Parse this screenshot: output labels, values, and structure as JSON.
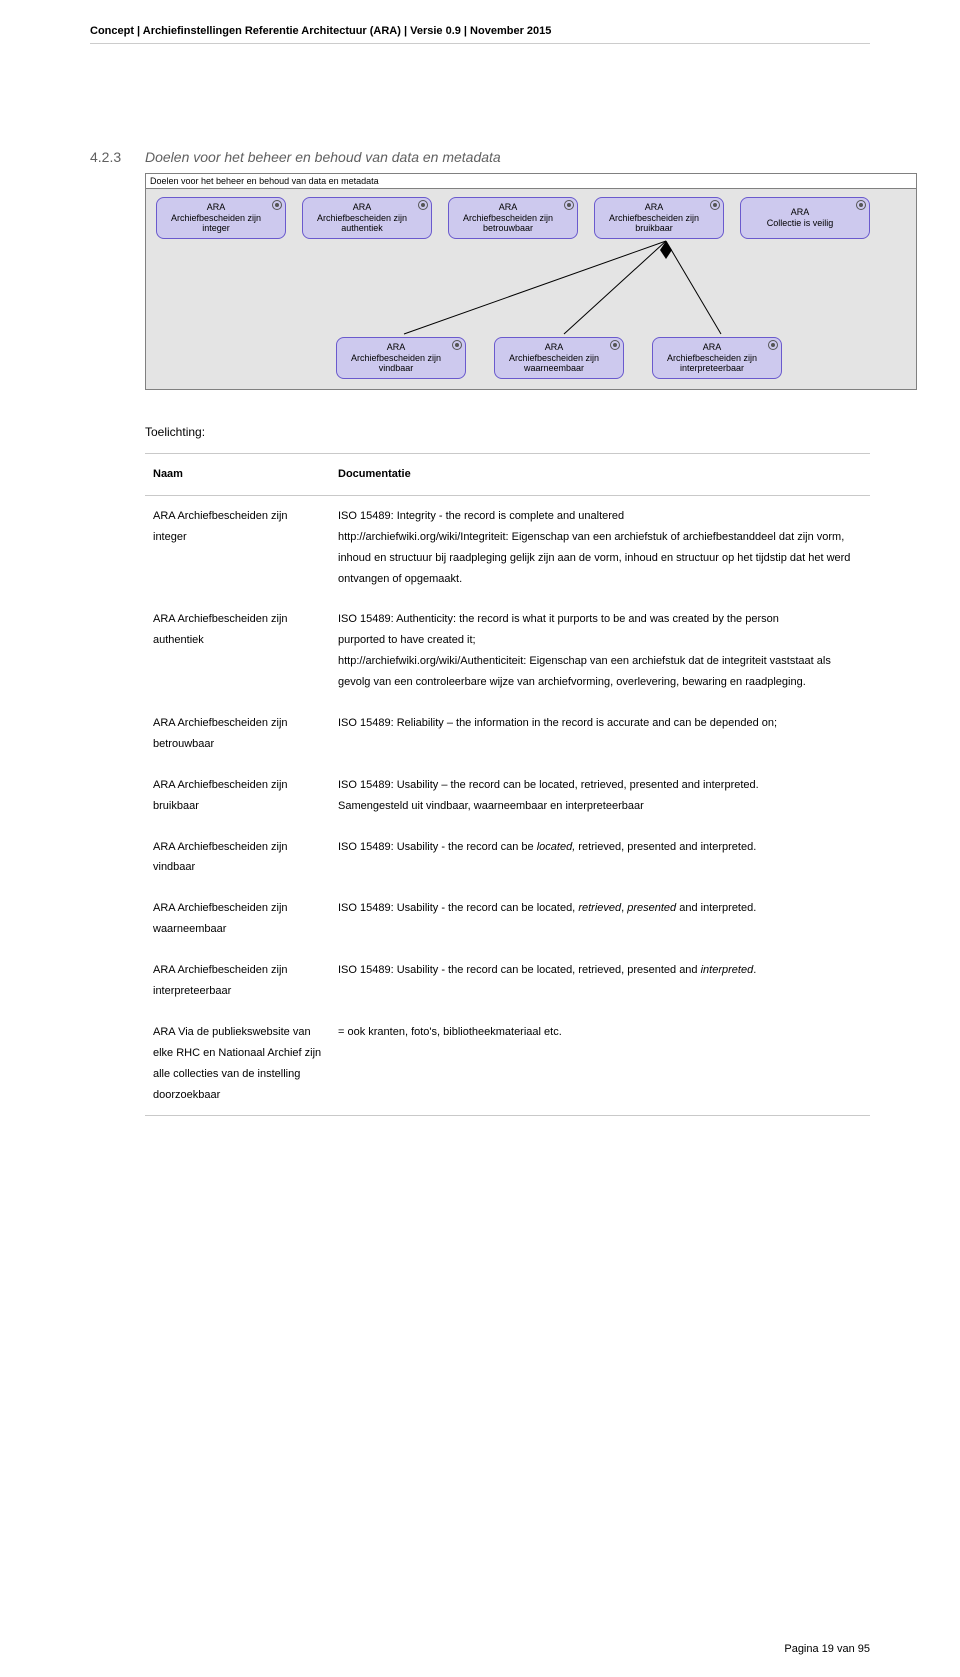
{
  "header": {
    "text": "Concept | Archiefinstellingen Referentie Architectuur (ARA) | Versie 0.9 | November 2015"
  },
  "section": {
    "number": "4.2.3",
    "title": "Doelen voor het beheer en behoud van data en metadata"
  },
  "diagram": {
    "title": "Doelen voor het beheer en behoud van data en metadata",
    "background_color": "#e4e4e4",
    "node_fill": "#cdc9ee",
    "node_border": "#6a5acd",
    "top_nodes": [
      {
        "line1": "ARA",
        "line2": "Archiefbescheiden zijn integer"
      },
      {
        "line1": "ARA",
        "line2": "Archiefbescheiden zijn authentiek"
      },
      {
        "line1": "ARA",
        "line2": "Archiefbescheiden zijn betrouwbaar"
      },
      {
        "line1": "ARA",
        "line2": "Archiefbescheiden zijn bruikbaar"
      },
      {
        "line1": "ARA",
        "line2": "Collectie is veilig"
      }
    ],
    "bottom_nodes": [
      {
        "line1": "ARA",
        "line2": "Archiefbescheiden zijn vindbaar"
      },
      {
        "line1": "ARA",
        "line2": "Archiefbescheiden zijn waarneembaar"
      },
      {
        "line1": "ARA",
        "line2": "Archiefbescheiden zijn interpreteerbaar"
      }
    ]
  },
  "toelichting_label": "Toelichting:",
  "table": {
    "head_naam": "Naam",
    "head_doc": "Documentatie",
    "rows": [
      {
        "naam": "ARA Archiefbescheiden zijn integer",
        "doc": "ISO 15489: Integrity - the record is complete and unaltered\nhttp://archiefwiki.org/wiki/Integriteit: Eigenschap van een archiefstuk of archiefbestanddeel dat zijn vorm, inhoud en structuur bij raadpleging gelijk zijn aan de vorm, inhoud en structuur op het tijdstip dat het werd ontvangen of opgemaakt."
      },
      {
        "naam": "ARA Archiefbescheiden zijn authentiek",
        "doc": "ISO 15489: Authenticity: the record is what it purports to be and was created by the person\npurported to have created it;\nhttp://archiefwiki.org/wiki/Authenticiteit: Eigenschap van een archiefstuk dat de integriteit vaststaat als gevolg van een controleerbare wijze van archiefvorming, overlevering, bewaring en raadpleging."
      },
      {
        "naam": "ARA  Archiefbescheiden zijn betrouwbaar",
        "doc": "ISO 15489: Reliability – the information in the record is accurate and can be depended on;"
      },
      {
        "naam": "ARA Archiefbescheiden zijn bruikbaar",
        "doc_html": "ISO 15489: Usability – the record can be located, retrieved, presented and interpreted.<br>Samengesteld uit vindbaar, waarneembaar en interpreteerbaar"
      },
      {
        "naam": "ARA Archiefbescheiden zijn vindbaar",
        "doc_html": "ISO 15489: Usability - the record can be <em>located,</em> retrieved, presented and interpreted."
      },
      {
        "naam": "ARA Archiefbescheiden zijn waarneembaar",
        "doc_html": "ISO 15489: Usability - the record can be located, <em>retrieved</em>, <em>presented</em> and interpreted."
      },
      {
        "naam": "ARA Archiefbescheiden zijn interpreteerbaar",
        "doc_html": "ISO 15489: Usability - the record can be located, retrieved, presented and <em>interpreted</em>."
      },
      {
        "naam": "ARA Via de publiekswebsite van elke RHC en Nationaal Archief zijn alle collecties van de instelling doorzoekbaar",
        "doc": "= ook kranten, foto's, bibliotheekmateriaal etc."
      }
    ]
  },
  "footer": "Pagina 19 van 95"
}
